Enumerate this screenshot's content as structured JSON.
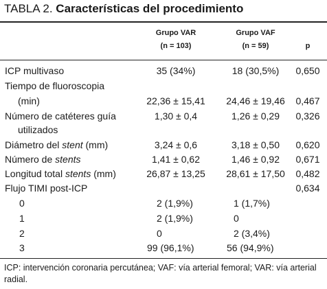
{
  "title": {
    "prefix": "TABLA 2.",
    "bold": "Características del procedimiento"
  },
  "header": {
    "var_line1": "Grupo VAR",
    "var_line2": "(n = 103)",
    "vaf_line1": "Grupo VAF",
    "vaf_line2": "(n = 59)",
    "p": "p"
  },
  "rows": [
    {
      "label": "ICP multivaso",
      "var": "35 (34%)",
      "vaf": "18 (30,5%)",
      "p": "0,650"
    },
    {
      "label": "Tiempo de fluoroscopia",
      "var": "",
      "vaf": "",
      "p": ""
    },
    {
      "label": "(min)",
      "var": "22,36 ± 15,41",
      "vaf": "24,46 ± 19,46",
      "p": "0,467"
    },
    {
      "label": "Número de catéteres guía",
      "var": "1,30 ± 0,4",
      "vaf": "1,26 ± 0,29",
      "p": "0,326"
    },
    {
      "label": "utilizados",
      "var": "",
      "vaf": "",
      "p": ""
    },
    {
      "label_pre": "Diámetro del ",
      "label_em": "stent",
      "label_post": " (mm)",
      "var": "3,24 ± 0,6",
      "vaf": "3,18 ± 0,50",
      "p": "0,620"
    },
    {
      "label_pre": "Número de ",
      "label_em": "stents",
      "label_post": "",
      "var": "1,41 ± 0,62",
      "vaf": "1,46 ± 0,92",
      "p": "0,671"
    },
    {
      "label_pre": "Longitud total ",
      "label_em": "stents",
      "label_post": " (mm)",
      "var": "26,87 ± 13,25",
      "vaf": "28,61 ± 17,50",
      "p": "0,482"
    },
    {
      "label": "Flujo TIMI post-ICP",
      "var": "",
      "vaf": "",
      "p": "0,634"
    },
    {
      "label": "0",
      "var": "2 (1,9%)",
      "vaf": "1 (1,7%)",
      "p": ""
    },
    {
      "label": "1",
      "var": "2 (1,9%)",
      "vaf": "0",
      "p": ""
    },
    {
      "label": "2",
      "var": "0",
      "vaf": "2 (3,4%)",
      "p": ""
    },
    {
      "label": "3",
      "var": "99 (96,1%)",
      "vaf": "56 (94,9%)",
      "p": ""
    }
  ],
  "footnote": "ICP: intervención coronaria percutánea; VAF: vía arterial femoral; VAR: vía arterial radial."
}
